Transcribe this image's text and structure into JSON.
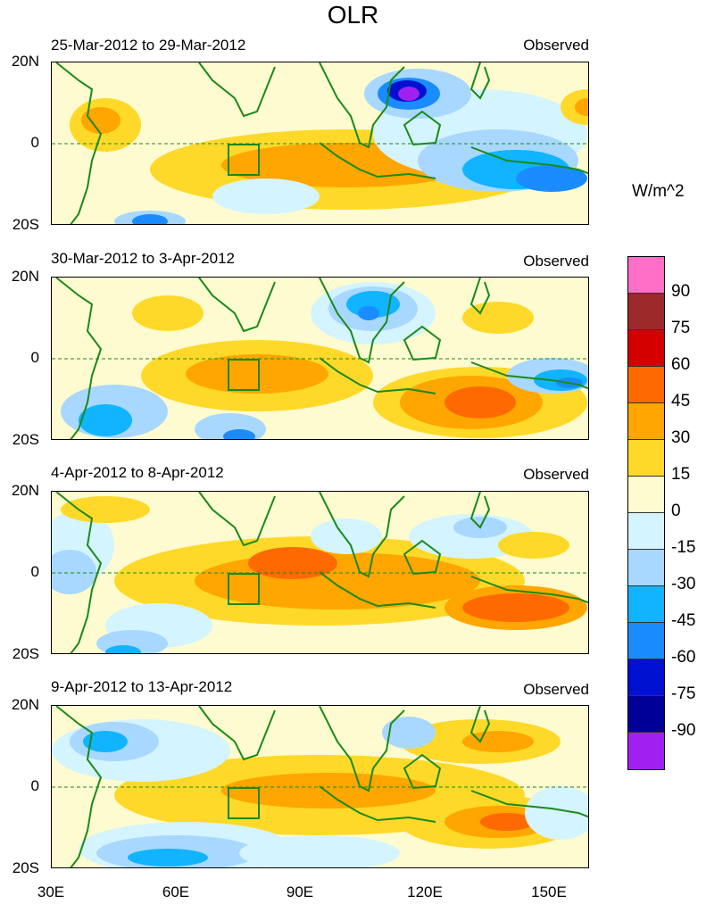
{
  "title": "OLR",
  "units": "W/m^2",
  "lat_labels": [
    "20N",
    "0",
    "20S"
  ],
  "lon_labels": [
    "30E",
    "60E",
    "90E",
    "120E",
    "150E"
  ],
  "panels": [
    {
      "period": "25-Mar-2012 to 29-Mar-2012",
      "label": "Observed"
    },
    {
      "period": "30-Mar-2012 to 3-Apr-2012",
      "label": "Observed"
    },
    {
      "period": "4-Apr-2012 to 8-Apr-2012",
      "label": "Observed"
    },
    {
      "period": "9-Apr-2012 to 13-Apr-2012",
      "label": "Observed"
    }
  ],
  "colorbar": {
    "colors": [
      "#ff6ec7",
      "#9c2a2a",
      "#d40000",
      "#ff6a00",
      "#ffa600",
      "#ffd929",
      "#fffbd0",
      "#d4f4ff",
      "#a8d8ff",
      "#10b4ff",
      "#1a8cff",
      "#0010d0",
      "#000099",
      "#a020f0"
    ],
    "ticks": [
      "90",
      "75",
      "60",
      "45",
      "30",
      "15",
      "0",
      "-15",
      "-30",
      "-45",
      "-60",
      "-75",
      "-90"
    ]
  },
  "colors": {
    "coast": "#1a8a1a",
    "background": "#fffbd0"
  }
}
